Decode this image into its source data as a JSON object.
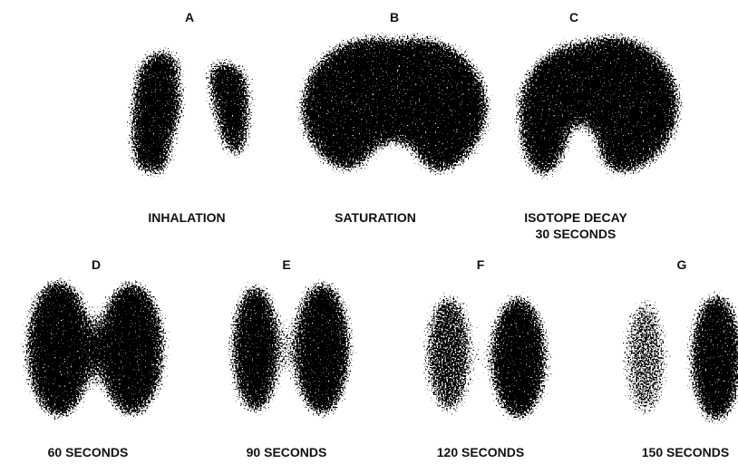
{
  "figure": {
    "panels": [
      {
        "letter": "A",
        "caption": [
          "INHALATION"
        ]
      },
      {
        "letter": "B",
        "caption": [
          "SATURATION"
        ]
      },
      {
        "letter": "C",
        "caption": [
          "ISOTOPE DECAY",
          "30 SECONDS"
        ]
      },
      {
        "letter": "D",
        "caption": [
          "60 SECONDS"
        ]
      },
      {
        "letter": "E",
        "caption": [
          "90 SECONDS"
        ]
      },
      {
        "letter": "F",
        "caption": [
          "120 SECONDS"
        ]
      },
      {
        "letter": "G",
        "caption": [
          "150 SECONDS"
        ]
      }
    ]
  }
}
